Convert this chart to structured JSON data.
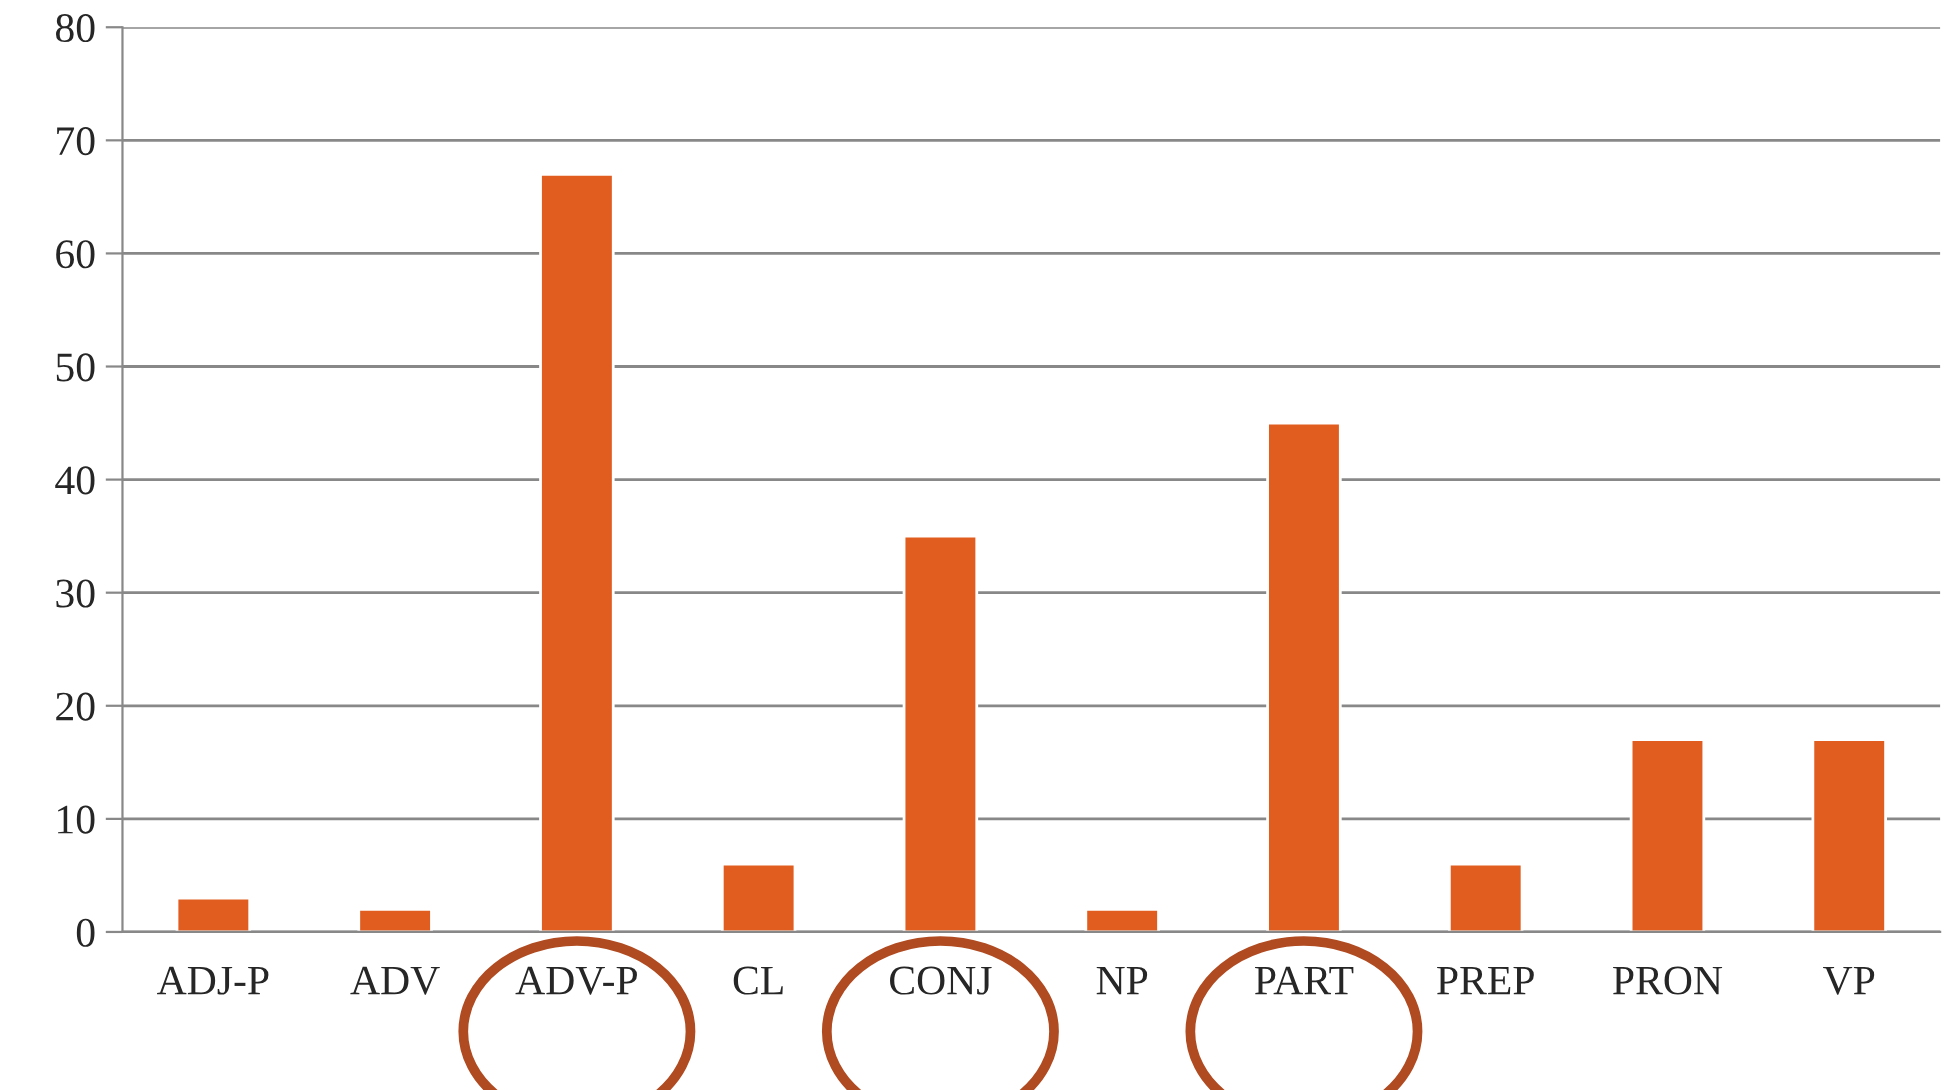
{
  "chart_data": {
    "type": "bar",
    "categories": [
      "ADJ-P",
      "ADV",
      "ADV-P",
      "CL",
      "CONJ",
      "NP",
      "PART",
      "PREP",
      "PRON",
      "VP"
    ],
    "values": [
      3,
      2,
      67,
      6,
      35,
      2,
      45,
      6,
      17,
      17
    ],
    "color": "#e05c1f",
    "ylim": [
      0,
      80
    ],
    "yticks": [
      0,
      10,
      20,
      30,
      40,
      50,
      60,
      70,
      80
    ],
    "grid": "y",
    "legend": false
  }
}
